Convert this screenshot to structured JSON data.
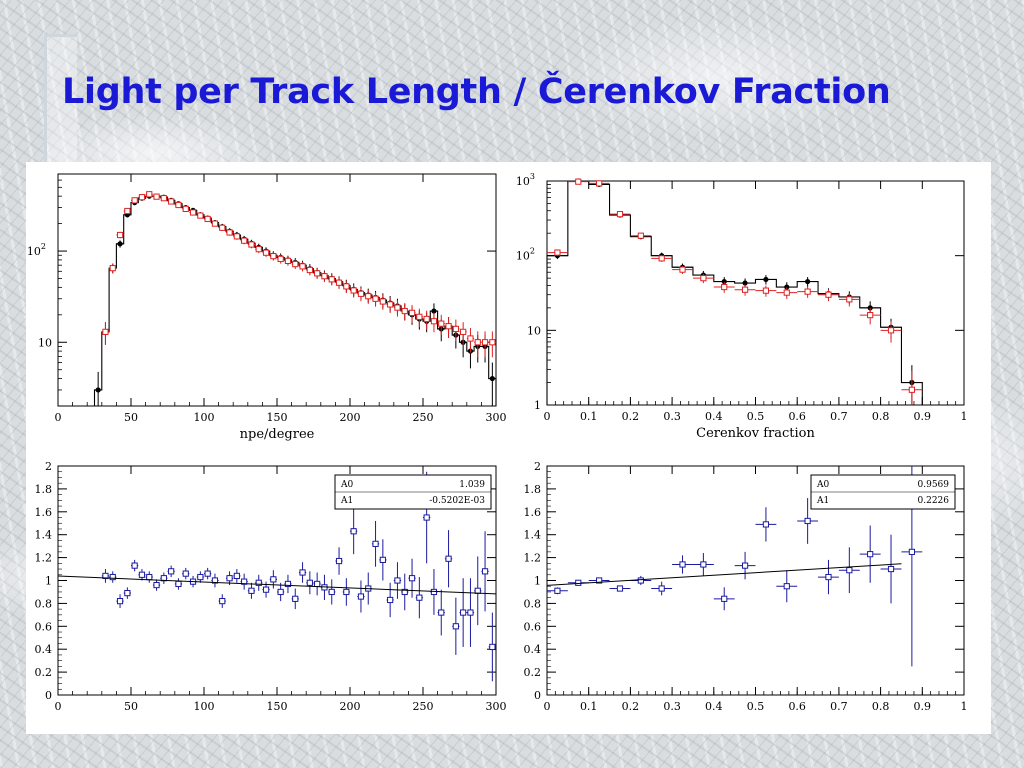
{
  "slide": {
    "title": "Light per Track Length  /  Čerenkov Fraction"
  },
  "colors": {
    "title": "#1919d6",
    "data_black": "#000000",
    "data_red": "#e02020",
    "ratio_blue": "#1a1aa0"
  },
  "chart_data": [
    {
      "id": "npe-hist",
      "type": "line",
      "xlabel": "npe/degree",
      "ylabel": "",
      "xlim": [
        0,
        300
      ],
      "ylim": [
        2,
        700
      ],
      "yscale": "log",
      "xticks": [
        0,
        50,
        100,
        150,
        200,
        250,
        300
      ],
      "yticks": [
        {
          "value": 10,
          "label": "10"
        },
        {
          "value": 100,
          "label": "10 2"
        }
      ],
      "series": [
        {
          "color": "#000000",
          "marker": "filled-circle",
          "histogram": true,
          "x": [
            27.5,
            32.5,
            37.5,
            42.5,
            47.5,
            52.5,
            57.5,
            62.5,
            67.5,
            72.5,
            77.5,
            82.5,
            87.5,
            92.5,
            97.5,
            102.5,
            107.5,
            112.5,
            117.5,
            122.5,
            127.5,
            132.5,
            137.5,
            142.5,
            147.5,
            152.5,
            157.5,
            162.5,
            167.5,
            172.5,
            177.5,
            182.5,
            187.5,
            192.5,
            197.5,
            202.5,
            207.5,
            212.5,
            217.5,
            222.5,
            227.5,
            232.5,
            237.5,
            242.5,
            247.5,
            252.5,
            257.5,
            262.5,
            267.5,
            272.5,
            277.5,
            282.5,
            287.5,
            292.5,
            297.5
          ],
          "y": [
            3,
            13,
            65,
            120,
            250,
            340,
            380,
            400,
            400,
            390,
            360,
            330,
            300,
            280,
            250,
            230,
            205,
            185,
            165,
            150,
            135,
            122,
            110,
            100,
            90,
            85,
            80,
            75,
            70,
            64,
            58,
            54,
            50,
            46,
            42,
            38,
            35,
            33,
            31,
            29,
            27,
            25,
            22,
            20,
            18,
            17,
            22,
            14,
            15,
            12,
            10,
            8,
            9,
            9,
            4
          ]
        },
        {
          "color": "#e02020",
          "marker": "open-square",
          "histogram": false,
          "x": [
            32.5,
            37.5,
            42.5,
            47.5,
            52.5,
            57.5,
            62.5,
            67.5,
            72.5,
            77.5,
            82.5,
            87.5,
            92.5,
            97.5,
            102.5,
            107.5,
            112.5,
            117.5,
            122.5,
            127.5,
            132.5,
            137.5,
            142.5,
            147.5,
            152.5,
            157.5,
            162.5,
            167.5,
            172.5,
            177.5,
            182.5,
            187.5,
            192.5,
            197.5,
            202.5,
            207.5,
            212.5,
            217.5,
            222.5,
            227.5,
            232.5,
            237.5,
            242.5,
            247.5,
            252.5,
            257.5,
            262.5,
            267.5,
            272.5,
            277.5,
            282.5,
            287.5,
            292.5,
            297.5
          ],
          "y": [
            13,
            65,
            150,
            275,
            360,
            390,
            420,
            395,
            380,
            350,
            320,
            290,
            265,
            245,
            225,
            200,
            180,
            160,
            145,
            130,
            118,
            105,
            96,
            88,
            82,
            78,
            72,
            68,
            62,
            57,
            53,
            49,
            45,
            41,
            37,
            34,
            32,
            30,
            28,
            26,
            24,
            22,
            21,
            19,
            18,
            17,
            16,
            15,
            14,
            13,
            11,
            10,
            10,
            10
          ]
        }
      ]
    },
    {
      "id": "cerenkov-hist",
      "type": "line",
      "xlabel": "Cerenkov fraction",
      "ylabel": "",
      "xlim": [
        0,
        1
      ],
      "ylim": [
        1,
        1000
      ],
      "yscale": "log",
      "xticks": [
        0,
        0.1,
        0.2,
        0.3,
        0.4,
        0.5,
        0.6,
        0.7,
        0.8,
        0.9,
        1
      ],
      "yticks": [
        {
          "value": 1,
          "label": "1"
        },
        {
          "value": 10,
          "label": "10"
        },
        {
          "value": 100,
          "label": "10 2"
        },
        {
          "value": 1000,
          "label": "10 3"
        }
      ],
      "series": [
        {
          "color": "#000000",
          "marker": "filled-circle",
          "histogram": true,
          "x": [
            0.025,
            0.075,
            0.125,
            0.175,
            0.225,
            0.275,
            0.325,
            0.375,
            0.425,
            0.475,
            0.525,
            0.575,
            0.625,
            0.675,
            0.725,
            0.775,
            0.825,
            0.875
          ],
          "y": [
            100,
            1000,
            900,
            350,
            180,
            100,
            70,
            55,
            45,
            43,
            48,
            38,
            45,
            31,
            28,
            20,
            11,
            2
          ]
        },
        {
          "color": "#e02020",
          "marker": "open-square",
          "histogram": false,
          "x": [
            0.025,
            0.075,
            0.125,
            0.175,
            0.225,
            0.275,
            0.325,
            0.375,
            0.425,
            0.475,
            0.525,
            0.575,
            0.625,
            0.675,
            0.725,
            0.775,
            0.825,
            0.875
          ],
          "y": [
            110,
            980,
            930,
            360,
            185,
            92,
            65,
            50,
            38,
            35,
            34,
            32,
            33,
            30,
            26,
            16,
            10,
            1.6
          ]
        }
      ]
    },
    {
      "id": "npe-ratio",
      "type": "scatter",
      "xlabel": "",
      "ylabel": "",
      "xlim": [
        0,
        300
      ],
      "ylim": [
        0,
        2
      ],
      "xticks": [
        0,
        50,
        100,
        150,
        200,
        250,
        300
      ],
      "yticks": [
        0,
        0.2,
        0.4,
        0.6,
        0.8,
        1,
        1.2,
        1.4,
        1.6,
        1.8,
        2
      ],
      "fit": {
        "rows": [
          {
            "name": "A0",
            "value": "1.039"
          },
          {
            "name": "A1",
            "value": "-0.5202E-03"
          }
        ],
        "a0": 1.039,
        "a1": -0.0005202
      },
      "series": [
        {
          "color": "#1a1aa0",
          "marker": "open-square",
          "x": [
            32.5,
            37.5,
            42.5,
            47.5,
            52.5,
            57.5,
            62.5,
            67.5,
            72.5,
            77.5,
            82.5,
            87.5,
            92.5,
            97.5,
            102.5,
            107.5,
            112.5,
            117.5,
            122.5,
            127.5,
            132.5,
            137.5,
            142.5,
            147.5,
            152.5,
            157.5,
            162.5,
            167.5,
            172.5,
            177.5,
            182.5,
            187.5,
            192.5,
            197.5,
            202.5,
            207.5,
            212.5,
            217.5,
            222.5,
            227.5,
            232.5,
            237.5,
            242.5,
            247.5,
            252.5,
            257.5,
            262.5,
            267.5,
            272.5,
            277.5,
            282.5,
            287.5,
            292.5,
            297.5
          ],
          "y": [
            1.04,
            1.03,
            0.82,
            0.89,
            1.13,
            1.05,
            1.03,
            0.96,
            1.02,
            1.08,
            0.97,
            1.06,
            0.99,
            1.03,
            1.06,
            1.0,
            0.82,
            1.02,
            1.04,
            0.99,
            0.91,
            0.98,
            0.92,
            1.01,
            0.9,
            0.97,
            0.84,
            1.07,
            0.98,
            0.97,
            0.94,
            0.9,
            1.17,
            0.9,
            1.43,
            0.86,
            0.93,
            1.32,
            1.18,
            0.83,
            1.0,
            0.9,
            1.02,
            0.85,
            1.55,
            0.9,
            0.72,
            1.19,
            0.6,
            0.72,
            0.72,
            0.91,
            1.08,
            0.42
          ],
          "err": [
            0.06,
            0.05,
            0.06,
            0.05,
            0.05,
            0.05,
            0.05,
            0.05,
            0.05,
            0.05,
            0.05,
            0.05,
            0.05,
            0.05,
            0.05,
            0.06,
            0.06,
            0.06,
            0.06,
            0.07,
            0.07,
            0.07,
            0.07,
            0.08,
            0.08,
            0.08,
            0.09,
            0.09,
            0.1,
            0.1,
            0.11,
            0.11,
            0.12,
            0.12,
            0.2,
            0.14,
            0.14,
            0.2,
            0.18,
            0.15,
            0.16,
            0.16,
            0.17,
            0.18,
            0.4,
            0.2,
            0.2,
            0.25,
            0.25,
            0.3,
            0.3,
            0.3,
            0.35,
            0.3
          ]
        }
      ]
    },
    {
      "id": "cerenkov-ratio",
      "type": "scatter",
      "xlabel": "",
      "ylabel": "",
      "xlim": [
        0,
        1
      ],
      "ylim": [
        0,
        2
      ],
      "xticks": [
        0,
        0.1,
        0.2,
        0.3,
        0.4,
        0.5,
        0.6,
        0.7,
        0.8,
        0.9,
        1
      ],
      "yticks": [
        0,
        0.2,
        0.4,
        0.6,
        0.8,
        1,
        1.2,
        1.4,
        1.6,
        1.8,
        2
      ],
      "fit": {
        "rows": [
          {
            "name": "A0",
            "value": "0.9569"
          },
          {
            "name": "A1",
            "value": "0.2226"
          }
        ],
        "a0": 0.9569,
        "a1": 0.2226
      },
      "series": [
        {
          "color": "#1a1aa0",
          "marker": "open-square",
          "x": [
            0.025,
            0.075,
            0.125,
            0.175,
            0.225,
            0.275,
            0.325,
            0.375,
            0.425,
            0.475,
            0.525,
            0.575,
            0.625,
            0.675,
            0.725,
            0.775,
            0.825,
            0.875
          ],
          "y": [
            0.91,
            0.98,
            1.0,
            0.93,
            1.0,
            0.93,
            1.14,
            1.14,
            0.84,
            1.13,
            1.49,
            0.95,
            1.52,
            1.03,
            1.09,
            1.23,
            1.1,
            1.25
          ],
          "err": [
            0.03,
            0.01,
            0.01,
            0.02,
            0.04,
            0.06,
            0.08,
            0.1,
            0.1,
            0.12,
            0.15,
            0.14,
            0.2,
            0.15,
            0.2,
            0.25,
            0.3,
            1.0
          ]
        }
      ]
    }
  ]
}
